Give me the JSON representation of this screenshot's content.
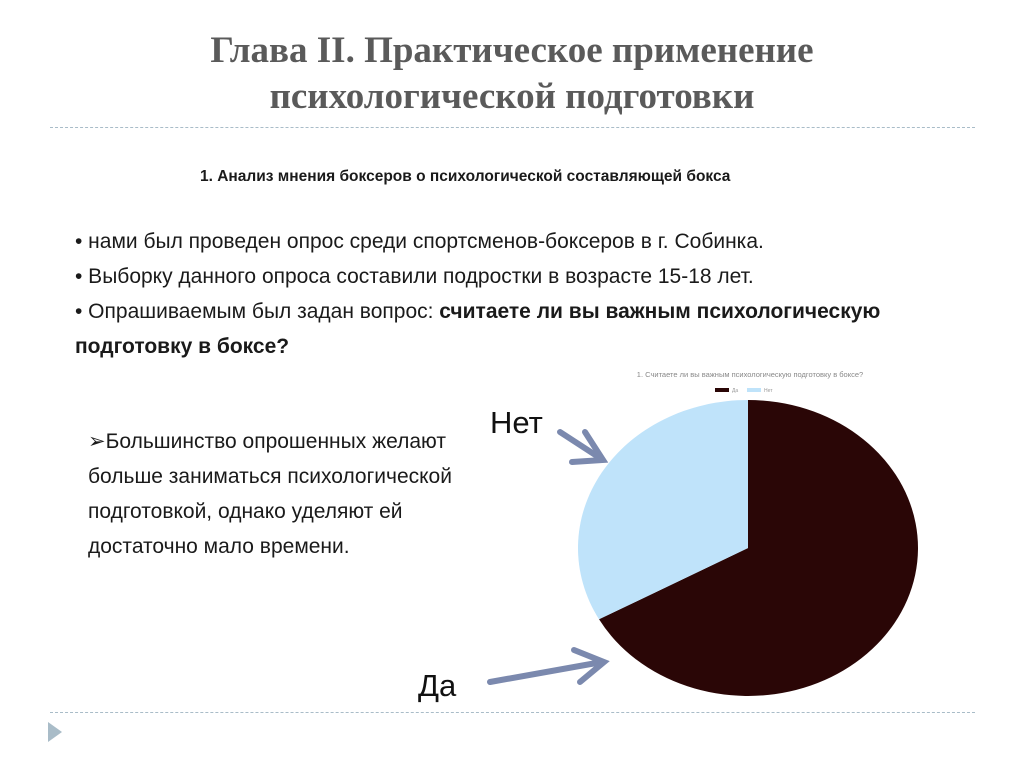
{
  "title_line1": "Глава II. Практическое применение",
  "title_line2": "психологической подготовки",
  "subtitle": "1. Анализ мнения боксеров о психологической составляющей бокса",
  "bullets": {
    "b1": "• нами был проведен опрос среди спортсменов-боксеров в г. Собинка.",
    "b2": "• Выборку данного опроса составили подростки в возрасте 15-18 лет.",
    "b3_plain": "• Опрашиваемым был задан вопрос: ",
    "b3_bold": "считаете ли вы важным психологическую подготовку в боксе?"
  },
  "conclusion": "➢Большинство опрошенных желают больше заниматься психологической подготовкой, однако уделяют ей достаточно мало времени.",
  "labels": {
    "no": "Нет",
    "yes": "Да"
  },
  "chart_data": {
    "type": "pie",
    "title": "1. Считаете ли вы важным психологическую подготовку в боксе?",
    "legend_position": "top",
    "categories": [
      "Да",
      "Нет"
    ],
    "values": [
      67,
      33
    ],
    "colors": [
      "#2a0606",
      "#bfe3fa"
    ]
  },
  "colors": {
    "title": "#5a5a5a",
    "arrow": "#7b89ae",
    "nav_icon": "#a9bcc8"
  }
}
